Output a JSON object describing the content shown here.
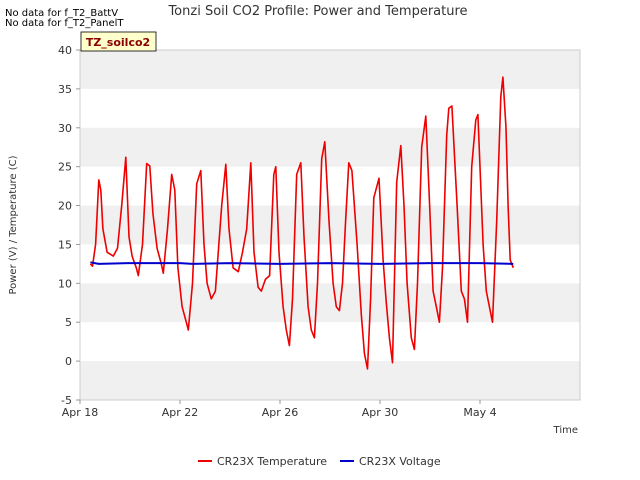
{
  "notes": [
    "No data for f_T2_BattV",
    "No data for f_T2_PanelT"
  ],
  "badge": "TZ_soilco2",
  "colors": {
    "temperature": "#ee0000",
    "voltage": "#0000cc",
    "band": "#f0f0f0",
    "badge_bg": "#ffffcc",
    "badge_text": "#8b0000"
  },
  "chart_data": {
    "type": "line",
    "title": "Tonzi Soil CO2 Profile: Power and Temperature",
    "xlabel": "Time",
    "ylabel": "Power (V) / Temperature (C)",
    "xlim": [
      "2024-04-18",
      "2024-05-08"
    ],
    "ylim": [
      -5,
      40
    ],
    "yticks": [
      -5,
      0,
      5,
      10,
      15,
      20,
      25,
      30,
      35,
      40
    ],
    "xticks": [
      {
        "date": "2024-04-18",
        "label": "Apr 18"
      },
      {
        "date": "2024-04-22",
        "label": "Apr 22"
      },
      {
        "date": "2024-04-26",
        "label": "Apr 26"
      },
      {
        "date": "2024-04-30",
        "label": "Apr 30"
      },
      {
        "date": "2024-05-04",
        "label": "May 4"
      }
    ],
    "legend": "bottom",
    "series": [
      {
        "name": "CR23X Temperature",
        "color": "#ee0000",
        "points": [
          [
            "2024-04-18 10:00",
            12.5
          ],
          [
            "2024-04-18 12:00",
            12.2
          ],
          [
            "2024-04-18 15:00",
            15.0
          ],
          [
            "2024-04-18 18:00",
            23.3
          ],
          [
            "2024-04-18 20:00",
            22.0
          ],
          [
            "2024-04-18 22:00",
            17.0
          ],
          [
            "2024-04-19 02:00",
            14.0
          ],
          [
            "2024-04-19 08:00",
            13.5
          ],
          [
            "2024-04-19 12:00",
            14.5
          ],
          [
            "2024-04-19 16:00",
            20.0
          ],
          [
            "2024-04-19 20:00",
            26.2
          ],
          [
            "2024-04-19 23:00",
            16.0
          ],
          [
            "2024-04-20 02:00",
            13.5
          ],
          [
            "2024-04-20 06:00",
            12.0
          ],
          [
            "2024-04-20 08:00",
            11.0
          ],
          [
            "2024-04-20 12:00",
            15.0
          ],
          [
            "2024-04-20 16:00",
            25.4
          ],
          [
            "2024-04-20 19:00",
            25.1
          ],
          [
            "2024-04-20 22:00",
            19.0
          ],
          [
            "2024-04-21 02:00",
            14.5
          ],
          [
            "2024-04-21 06:00",
            12.5
          ],
          [
            "2024-04-21 08:00",
            11.3
          ],
          [
            "2024-04-21 12:00",
            17.0
          ],
          [
            "2024-04-21 16:00",
            24.0
          ],
          [
            "2024-04-21 19:00",
            22.0
          ],
          [
            "2024-04-21 22:00",
            12.0
          ],
          [
            "2024-04-22 02:00",
            7.0
          ],
          [
            "2024-04-22 06:00",
            5.0
          ],
          [
            "2024-04-22 08:00",
            4.0
          ],
          [
            "2024-04-22 12:00",
            10.0
          ],
          [
            "2024-04-22 16:00",
            22.8
          ],
          [
            "2024-04-22 20:00",
            24.5
          ],
          [
            "2024-04-22 23:00",
            15.0
          ],
          [
            "2024-04-23 02:00",
            10.0
          ],
          [
            "2024-04-23 06:00",
            8.0
          ],
          [
            "2024-04-23 10:00",
            9.0
          ],
          [
            "2024-04-23 16:00",
            20.0
          ],
          [
            "2024-04-23 20:00",
            25.3
          ],
          [
            "2024-04-23 23:00",
            17.0
          ],
          [
            "2024-04-24 03:00",
            12.0
          ],
          [
            "2024-04-24 08:00",
            11.5
          ],
          [
            "2024-04-24 12:00",
            14.0
          ],
          [
            "2024-04-24 16:00",
            17.0
          ],
          [
            "2024-04-24 20:00",
            25.5
          ],
          [
            "2024-04-24 23:00",
            14.0
          ],
          [
            "2024-04-25 03:00",
            9.5
          ],
          [
            "2024-04-25 06:00",
            9.0
          ],
          [
            "2024-04-25 10:00",
            10.5
          ],
          [
            "2024-04-25 14:00",
            11.0
          ],
          [
            "2024-04-25 18:00",
            24.0
          ],
          [
            "2024-04-25 20:00",
            25.0
          ],
          [
            "2024-04-25 23:00",
            14.0
          ],
          [
            "2024-04-26 03:00",
            7.0
          ],
          [
            "2024-04-26 06:00",
            4.0
          ],
          [
            "2024-04-26 09:00",
            2.0
          ],
          [
            "2024-04-26 12:00",
            8.0
          ],
          [
            "2024-04-26 16:00",
            24.0
          ],
          [
            "2024-04-26 20:00",
            25.5
          ],
          [
            "2024-04-26 23:00",
            16.0
          ],
          [
            "2024-04-27 03:00",
            7.0
          ],
          [
            "2024-04-27 06:00",
            4.0
          ],
          [
            "2024-04-27 09:00",
            3.0
          ],
          [
            "2024-04-27 12:00",
            10.0
          ],
          [
            "2024-04-27 16:00",
            26.0
          ],
          [
            "2024-04-27 19:00",
            28.2
          ],
          [
            "2024-04-27 23:00",
            18.0
          ],
          [
            "2024-04-28 03:00",
            10.0
          ],
          [
            "2024-04-28 06:00",
            7.0
          ],
          [
            "2024-04-28 09:00",
            6.5
          ],
          [
            "2024-04-28 12:00",
            10.0
          ],
          [
            "2024-04-28 15:00",
            18.0
          ],
          [
            "2024-04-28 18:00",
            25.5
          ],
          [
            "2024-04-28 21:00",
            24.5
          ],
          [
            "2024-04-29 02:00",
            15.0
          ],
          [
            "2024-04-29 06:00",
            6.0
          ],
          [
            "2024-04-29 09:00",
            1.0
          ],
          [
            "2024-04-29 12:00",
            -1.0
          ],
          [
            "2024-04-29 15:00",
            8.0
          ],
          [
            "2024-04-29 18:00",
            21.0
          ],
          [
            "2024-04-29 23:00",
            23.5
          ],
          [
            "2024-04-30 03:00",
            13.0
          ],
          [
            "2024-04-30 06:00",
            7.5
          ],
          [
            "2024-04-30 09:00",
            3.0
          ],
          [
            "2024-04-30 12:00",
            -0.2
          ],
          [
            "2024-04-30 16:00",
            23.0
          ],
          [
            "2024-04-30 20:00",
            27.7
          ],
          [
            "2024-04-30 23:00",
            20.0
          ],
          [
            "2024-05-01 02:00",
            10.0
          ],
          [
            "2024-05-01 06:00",
            3.0
          ],
          [
            "2024-05-01 09:00",
            1.5
          ],
          [
            "2024-05-01 12:00",
            10.0
          ],
          [
            "2024-05-01 16:00",
            27.5
          ],
          [
            "2024-05-01 20:00",
            31.5
          ],
          [
            "2024-05-01 23:00",
            22.0
          ],
          [
            "2024-05-02 03:00",
            9.0
          ],
          [
            "2024-05-02 06:00",
            7.0
          ],
          [
            "2024-05-02 09:00",
            5.0
          ],
          [
            "2024-05-02 12:00",
            12.0
          ],
          [
            "2024-05-02 16:00",
            29.0
          ],
          [
            "2024-05-02 18:00",
            32.5
          ],
          [
            "2024-05-02 21:00",
            32.8
          ],
          [
            "2024-05-03 02:00",
            20.0
          ],
          [
            "2024-05-03 06:00",
            9.0
          ],
          [
            "2024-05-03 09:00",
            8.0
          ],
          [
            "2024-05-03 12:00",
            5.0
          ],
          [
            "2024-05-03 16:00",
            25.0
          ],
          [
            "2024-05-03 20:00",
            31.0
          ],
          [
            "2024-05-03 22:00",
            31.7
          ],
          [
            "2024-05-04 03:00",
            15.0
          ],
          [
            "2024-05-04 06:00",
            9.0
          ],
          [
            "2024-05-04 09:00",
            7.0
          ],
          [
            "2024-05-04 12:00",
            5.0
          ],
          [
            "2024-05-04 16:00",
            18.0
          ],
          [
            "2024-05-04 20:00",
            34.0
          ],
          [
            "2024-05-04 22:00",
            36.5
          ],
          [
            "2024-05-05 01:00",
            30.0
          ],
          [
            "2024-05-05 03:00",
            20.0
          ],
          [
            "2024-05-05 05:00",
            13.0
          ],
          [
            "2024-05-05 08:00",
            12.0
          ]
        ]
      },
      {
        "name": "CR23X Voltage",
        "color": "#0000cc",
        "points": [
          [
            "2024-04-18 10:00",
            12.7
          ],
          [
            "2024-04-18 18:00",
            12.5
          ],
          [
            "2024-04-20 00:00",
            12.6
          ],
          [
            "2024-04-22 00:00",
            12.6
          ],
          [
            "2024-04-22 12:00",
            12.5
          ],
          [
            "2024-04-24 00:00",
            12.6
          ],
          [
            "2024-04-26 00:00",
            12.5
          ],
          [
            "2024-04-28 00:00",
            12.6
          ],
          [
            "2024-04-30 00:00",
            12.5
          ],
          [
            "2024-05-02 00:00",
            12.6
          ],
          [
            "2024-05-04 00:00",
            12.6
          ],
          [
            "2024-05-05 08:00",
            12.5
          ]
        ]
      }
    ]
  }
}
